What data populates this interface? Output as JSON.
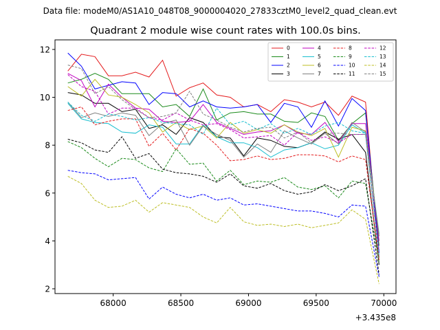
{
  "chart_data": {
    "type": "line",
    "suptitle": "Data file: modeM0/AS1A10_048T08_9000004020_27833cztM0_level2_quad_clean.evt",
    "title": "Quadrant 2 module wise count rates with 100.0s bins.",
    "xlabel": "",
    "ylabel": "",
    "x_offset_label": "+3.435e8",
    "xlim": [
      67570,
      70090
    ],
    "ylim": [
      1.8,
      12.4
    ],
    "xticks": [
      68000,
      68500,
      69000,
      69500,
      70000
    ],
    "xtick_labels": [
      "68000",
      "68500",
      "69000",
      "69500",
      "70000"
    ],
    "yticks": [
      2,
      4,
      6,
      8,
      10,
      12
    ],
    "ytick_labels": [
      "2",
      "4",
      "6",
      "8",
      "10",
      "12"
    ],
    "legend_position": "top-right",
    "x": [
      67665,
      67765,
      67865,
      67965,
      68065,
      68165,
      68265,
      68365,
      68465,
      68565,
      68665,
      68765,
      68865,
      68965,
      69065,
      69165,
      69265,
      69365,
      69465,
      69565,
      69665,
      69765,
      69865,
      69965
    ],
    "series": [
      {
        "name": "0",
        "color": "#e41a1c",
        "dash": "solid",
        "values": [
          11.1,
          11.8,
          11.7,
          10.9,
          10.9,
          11.05,
          10.85,
          11.55,
          10.05,
          10.4,
          10.6,
          10.1,
          10.0,
          9.6,
          9.7,
          9.4,
          9.9,
          9.8,
          9.6,
          9.8,
          9.25,
          10.05,
          9.8,
          3.3
        ]
      },
      {
        "name": "1",
        "color": "#1a8a1a",
        "dash": "solid",
        "values": [
          10.6,
          10.75,
          11.0,
          10.75,
          10.15,
          10.15,
          10.15,
          9.6,
          9.7,
          9.2,
          10.35,
          9.05,
          9.35,
          9.4,
          9.3,
          9.3,
          9.0,
          8.95,
          9.35,
          9.2,
          8.2,
          8.9,
          9.35,
          3.8
        ]
      },
      {
        "name": "2",
        "color": "#0000ff",
        "dash": "solid",
        "values": [
          11.85,
          11.3,
          10.35,
          10.5,
          10.65,
          10.6,
          9.7,
          10.2,
          10.15,
          9.6,
          9.85,
          9.6,
          9.55,
          9.6,
          9.7,
          8.95,
          9.75,
          9.6,
          8.75,
          9.85,
          8.8,
          9.95,
          9.45,
          3.5
        ]
      },
      {
        "name": "3",
        "color": "#000000",
        "dash": "solid",
        "values": [
          10.2,
          10.1,
          9.75,
          9.75,
          9.4,
          9.5,
          8.7,
          8.85,
          8.45,
          9.15,
          8.95,
          8.35,
          8.3,
          7.55,
          8.3,
          8.2,
          7.95,
          7.9,
          8.1,
          8.55,
          8.25,
          8.45,
          7.7,
          3.0
        ]
      },
      {
        "name": "4",
        "color": "#bf00bf",
        "dash": "solid",
        "values": [
          11.0,
          10.7,
          9.6,
          10.55,
          10.0,
          9.55,
          9.5,
          9.0,
          8.95,
          9.0,
          9.7,
          8.95,
          8.7,
          8.45,
          8.55,
          8.6,
          8.85,
          8.5,
          8.45,
          8.95,
          8.15,
          8.9,
          8.9,
          4.0
        ]
      },
      {
        "name": "5",
        "color": "#17becf",
        "dash": "solid",
        "values": [
          9.75,
          9.1,
          8.95,
          8.9,
          8.55,
          8.5,
          8.85,
          8.75,
          8.05,
          8.05,
          8.85,
          8.35,
          8.1,
          8.1,
          7.9,
          7.5,
          7.8,
          7.9,
          8.1,
          7.85,
          8.0,
          8.85,
          8.5,
          4.3
        ]
      },
      {
        "name": "6",
        "color": "#bcbd22",
        "dash": "solid",
        "values": [
          10.45,
          10.05,
          10.75,
          10.1,
          10.0,
          9.7,
          9.35,
          8.55,
          8.95,
          8.65,
          8.8,
          8.3,
          8.95,
          8.5,
          8.65,
          8.5,
          8.85,
          8.55,
          8.4,
          8.7,
          7.5,
          8.75,
          8.6,
          4.2
        ]
      },
      {
        "name": "7",
        "color": "#7f7f7f",
        "dash": "solid",
        "values": [
          9.8,
          9.15,
          9.35,
          9.2,
          9.35,
          9.25,
          8.4,
          8.9,
          9.05,
          8.0,
          8.8,
          8.45,
          8.2,
          7.5,
          8.05,
          7.7,
          8.6,
          8.3,
          8.05,
          8.5,
          8.05,
          8.95,
          8.55,
          4.2
        ]
      },
      {
        "name": "8",
        "color": "#e41a1c",
        "dash": "dashed",
        "values": [
          9.45,
          9.6,
          8.85,
          9.0,
          9.1,
          9.1,
          7.95,
          8.5,
          7.8,
          8.7,
          8.5,
          8.0,
          7.35,
          7.4,
          7.55,
          7.4,
          7.45,
          7.6,
          7.6,
          7.55,
          7.3,
          7.55,
          7.4,
          3.2
        ]
      },
      {
        "name": "9",
        "color": "#1a8a1a",
        "dash": "dashed",
        "values": [
          8.15,
          7.9,
          7.45,
          7.1,
          7.45,
          7.4,
          7.05,
          6.9,
          7.85,
          7.2,
          7.25,
          6.5,
          6.95,
          6.35,
          6.5,
          6.45,
          6.65,
          6.25,
          6.15,
          6.3,
          5.8,
          6.5,
          6.4,
          3.1
        ]
      },
      {
        "name": "10",
        "color": "#0000ff",
        "dash": "dashed",
        "values": [
          6.95,
          6.85,
          6.8,
          6.55,
          6.6,
          6.65,
          5.75,
          6.25,
          5.95,
          5.8,
          5.95,
          5.7,
          5.8,
          5.5,
          5.55,
          5.45,
          5.35,
          5.25,
          5.25,
          5.15,
          5.0,
          5.5,
          5.45,
          2.5
        ]
      },
      {
        "name": "11",
        "color": "#000000",
        "dash": "dashed",
        "values": [
          8.25,
          8.1,
          7.8,
          7.7,
          8.35,
          7.45,
          7.65,
          7.0,
          6.85,
          6.8,
          6.7,
          6.45,
          6.8,
          6.3,
          6.2,
          6.4,
          6.1,
          5.95,
          6.05,
          6.35,
          6.1,
          6.3,
          6.6,
          2.6
        ]
      },
      {
        "name": "12",
        "color": "#bf00bf",
        "dash": "dashed",
        "values": [
          10.95,
          10.45,
          10.25,
          9.3,
          9.55,
          9.55,
          9.15,
          9.05,
          9.35,
          9.05,
          8.85,
          8.9,
          8.65,
          8.3,
          8.35,
          8.4,
          8.0,
          8.55,
          8.2,
          8.35,
          8.1,
          8.45,
          8.45,
          3.6
        ]
      },
      {
        "name": "13",
        "color": "#17becf",
        "dash": "dashed",
        "values": [
          9.8,
          9.25,
          9.0,
          9.3,
          9.2,
          9.05,
          9.15,
          8.95,
          8.9,
          8.85,
          8.45,
          9.55,
          8.85,
          9.0,
          8.65,
          8.9,
          8.5,
          8.7,
          8.45,
          8.8,
          8.95,
          8.6,
          8.5,
          3.4
        ]
      },
      {
        "name": "14",
        "color": "#bcbd22",
        "dash": "dashed",
        "values": [
          6.7,
          6.4,
          5.7,
          5.4,
          5.45,
          5.7,
          5.2,
          5.6,
          5.5,
          5.4,
          5.0,
          4.75,
          5.4,
          4.8,
          4.65,
          4.7,
          4.6,
          4.7,
          4.55,
          4.65,
          4.75,
          5.3,
          4.9,
          2.2
        ]
      },
      {
        "name": "15",
        "color": "#7f7f7f",
        "dash": "dashed",
        "values": [
          11.35,
          11.2,
          10.15,
          10.45,
          9.9,
          9.5,
          9.15,
          9.2,
          9.35,
          10.25,
          9.3,
          9.05,
          8.75,
          8.55,
          8.7,
          8.75,
          8.3,
          8.55,
          8.1,
          8.5,
          8.5,
          8.45,
          8.45,
          3.3
        ]
      }
    ]
  }
}
